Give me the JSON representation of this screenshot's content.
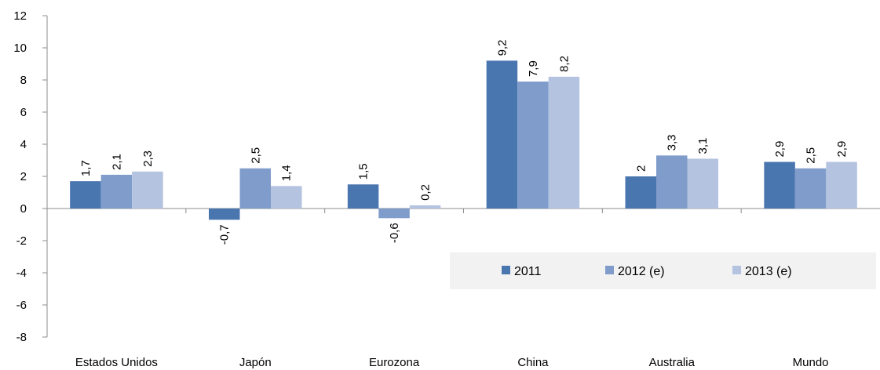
{
  "chart_data": {
    "type": "bar",
    "categories": [
      "Estados Unidos",
      "Japón",
      "Eurozona",
      "China",
      "Australia",
      "Mundo"
    ],
    "series": [
      {
        "name": "2011",
        "values": [
          1.7,
          -0.7,
          1.5,
          9.2,
          2,
          2.9
        ],
        "labels": [
          "1,7",
          "-0,7",
          "1,5",
          "9,2",
          "2",
          "2,9"
        ],
        "color": "#4a76b0"
      },
      {
        "name": "2012 (e)",
        "values": [
          2.1,
          2.5,
          -0.6,
          7.9,
          3.3,
          2.5
        ],
        "labels": [
          "2,1",
          "2,5",
          "-0,6",
          "7,9",
          "3,3",
          "2,5"
        ],
        "color": "#7f9ccb"
      },
      {
        "name": "2013 (e)",
        "values": [
          2.3,
          1.4,
          0.2,
          8.2,
          3.1,
          2.9
        ],
        "labels": [
          "2,3",
          "1,4",
          "0,2",
          "8,2",
          "3,1",
          "2,9"
        ],
        "color": "#b4c3df"
      }
    ],
    "ylim": [
      -8,
      12
    ],
    "yticks": [
      -8,
      -6,
      -4,
      -2,
      0,
      2,
      4,
      6,
      8,
      10,
      12
    ],
    "legend_position": "bottom-right",
    "legend_background": "#f2f2f2",
    "grid": false
  }
}
